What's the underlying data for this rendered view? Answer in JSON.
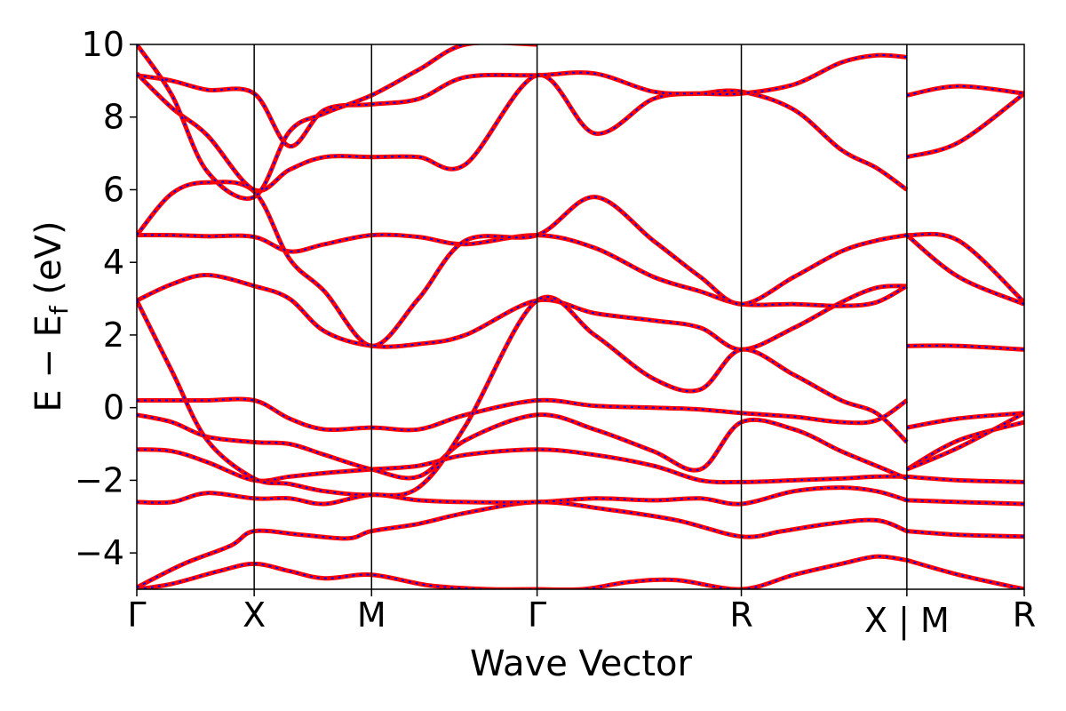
{
  "chart_data": {
    "type": "line",
    "title": "",
    "xlabel": "Wave Vector",
    "ylabel": "E − E",
    "ylabel_sub": "f",
    "ylabel_unit": " (eV)",
    "ylim": [
      -5,
      10
    ],
    "yticks": [
      -4,
      -2,
      0,
      2,
      4,
      6,
      8,
      10
    ],
    "ytick_labels": [
      "−4",
      "−2",
      "0",
      "2",
      "4",
      "6",
      "8",
      "10"
    ],
    "kpath": {
      "positions": [
        0,
        1,
        2,
        3.41,
        5.15,
        6.56,
        7.56
      ],
      "labels": [
        "Γ",
        "X",
        "M",
        "Γ",
        "R",
        "X",
        "R"
      ],
      "break_label": "X | M",
      "break_position": 6.56,
      "xlim": [
        0,
        7.56
      ]
    },
    "colors": {
      "line_primary": "#ff0000",
      "line_overlay": "#0000ff",
      "frame": "#000000"
    },
    "bands": [
      {
        "name": "b1",
        "x": [
          0,
          0.3,
          0.7,
          1,
          1.3,
          1.6,
          2,
          2.5,
          3,
          3.41,
          3.8,
          4.2,
          4.6,
          5.15,
          5.6,
          6.0,
          6.3,
          6.56,
          6.56,
          7.0,
          7.56
        ],
        "y": [
          -5,
          -4.85,
          -4.5,
          -4.3,
          -4.5,
          -4.7,
          -4.6,
          -4.9,
          -5,
          -5,
          -5,
          -4.8,
          -4.75,
          -5,
          -4.6,
          -4.3,
          -4.1,
          -4.2,
          -4.2,
          -4.6,
          -5
        ]
      },
      {
        "name": "b2",
        "x": [
          0,
          0.4,
          0.8,
          1,
          1.4,
          1.8,
          2,
          2.4,
          2.8,
          3.41,
          4.0,
          4.6,
          5.15,
          5.5,
          5.9,
          6.3,
          6.56,
          6.56,
          7.0,
          7.56
        ],
        "y": [
          -4.95,
          -4.3,
          -3.8,
          -3.4,
          -3.5,
          -3.6,
          -3.4,
          -3.2,
          -2.9,
          -2.6,
          -2.8,
          -3.1,
          -3.55,
          -3.4,
          -3.2,
          -3.1,
          -3.4,
          -3.4,
          -3.5,
          -3.55
        ]
      },
      {
        "name": "b3",
        "x": [
          0,
          0.3,
          0.6,
          1,
          1.3,
          1.6,
          2,
          2.4,
          2.8,
          3.41,
          3.9,
          4.4,
          4.8,
          5.15,
          5.6,
          6.0,
          6.3,
          6.56,
          6.56,
          7.0,
          7.56
        ],
        "y": [
          -2.6,
          -2.6,
          -2.35,
          -2.5,
          -2.5,
          -2.65,
          -2.4,
          -2.55,
          -2.6,
          -2.6,
          -2.5,
          -2.55,
          -2.5,
          -2.65,
          -2.3,
          -2.2,
          -2.3,
          -2.55,
          -2.55,
          -2.6,
          -2.65
        ]
      },
      {
        "name": "b4",
        "x": [
          0,
          0.3,
          0.6,
          1,
          1.3,
          1.6,
          2,
          2.4,
          2.8,
          3.41,
          3.9,
          4.4,
          4.8,
          5.15,
          5.6,
          6.0,
          6.3,
          6.56,
          6.56,
          7.0,
          7.56
        ],
        "y": [
          -1.15,
          -1.2,
          -1.5,
          -2.0,
          -1.9,
          -1.8,
          -1.7,
          -1.6,
          -1.3,
          -1.15,
          -1.3,
          -1.6,
          -2.0,
          -2.05,
          -2.0,
          -1.95,
          -1.9,
          -1.9,
          -1.9,
          -2.0,
          -2.05
        ]
      },
      {
        "name": "b5",
        "x": [
          0,
          0.3,
          0.6,
          1,
          1.3,
          1.6,
          2,
          2.4,
          2.8,
          3.41,
          3.9,
          4.4,
          4.8,
          5.15,
          5.6,
          6.0,
          6.3,
          6.56,
          6.56,
          7.0,
          7.56
        ],
        "y": [
          -0.2,
          -0.4,
          -0.8,
          -0.95,
          -1.0,
          -1.3,
          -1.7,
          -1.9,
          -0.9,
          -0.2,
          -0.6,
          -1.2,
          -1.7,
          -0.4,
          -0.6,
          -1.2,
          -1.6,
          -1.95,
          -1.7,
          -0.9,
          -0.4
        ]
      },
      {
        "name": "b6",
        "x": [
          0,
          0.3,
          0.6,
          1,
          1.3,
          1.6,
          2,
          2.4,
          2.8,
          3.41,
          3.9,
          4.4,
          4.8,
          5.15,
          5.6,
          6.0,
          6.3,
          6.56,
          6.56,
          7.0,
          7.56
        ],
        "y": [
          0.2,
          0.2,
          0.2,
          0.2,
          -0.3,
          -0.6,
          -0.55,
          -0.6,
          -0.2,
          0.2,
          0.05,
          0.0,
          -0.05,
          -0.15,
          -0.25,
          -0.4,
          -0.35,
          0.2,
          -0.55,
          -0.3,
          -0.15
        ]
      },
      {
        "name": "b7",
        "x": [
          0,
          0.3,
          0.6,
          1,
          1.3,
          1.6,
          2,
          2.4,
          2.8,
          3.41,
          3.9,
          4.4,
          4.8,
          5.15,
          5.6,
          6.0,
          6.3,
          6.56,
          6.56,
          7.0,
          7.56
        ],
        "y": [
          2.95,
          3.4,
          3.65,
          3.35,
          3.0,
          2.1,
          1.7,
          1.75,
          2.0,
          2.95,
          2.6,
          2.4,
          2.2,
          1.6,
          2.2,
          2.9,
          3.3,
          3.35,
          1.7,
          1.7,
          1.6
        ]
      },
      {
        "name": "b8",
        "x": [
          0,
          0.3,
          0.6,
          1,
          1.3,
          1.6,
          2,
          2.4,
          2.8,
          3.41,
          3.9,
          4.4,
          4.8,
          5.15,
          5.6,
          6.0,
          6.3,
          6.56,
          6.56,
          7.0,
          7.56
        ],
        "y": [
          2.95,
          1.0,
          -0.9,
          -1.95,
          -2.1,
          -2.3,
          -2.4,
          -2.2,
          -0.5,
          2.95,
          2.0,
          0.8,
          0.5,
          1.6,
          0.9,
          0.2,
          -0.15,
          -0.95,
          -1.7,
          -1.1,
          -0.15
        ]
      },
      {
        "name": "b9",
        "x": [
          0,
          0.3,
          0.6,
          1,
          1.3,
          1.6,
          2,
          2.4,
          2.8,
          3.41,
          3.9,
          4.4,
          4.8,
          5.15,
          5.6,
          6.0,
          6.3,
          6.56,
          6.56,
          7.0,
          7.56
        ],
        "y": [
          4.75,
          4.75,
          4.72,
          4.7,
          4.3,
          4.5,
          4.75,
          4.7,
          4.5,
          4.75,
          4.4,
          3.6,
          3.2,
          2.85,
          2.85,
          2.8,
          2.9,
          3.35,
          4.75,
          4.6,
          2.9
        ]
      },
      {
        "name": "b10",
        "x": [
          0,
          0.3,
          0.6,
          1,
          1.3,
          1.6,
          2,
          2.4,
          2.8,
          3.41,
          3.9,
          4.4,
          4.8,
          5.15,
          5.6,
          6.0,
          6.3,
          6.56,
          6.56,
          7.0,
          7.56
        ],
        "y": [
          4.75,
          5.9,
          6.2,
          5.95,
          4.1,
          3.2,
          1.7,
          3.0,
          4.6,
          4.75,
          5.8,
          4.6,
          3.6,
          2.85,
          3.6,
          4.3,
          4.6,
          4.75,
          4.75,
          3.6,
          2.85
        ]
      },
      {
        "name": "b11",
        "x": [
          0,
          0.3,
          0.6,
          1,
          1.3,
          1.6,
          2,
          2.4,
          2.8,
          3.41,
          3.9,
          4.4,
          4.8,
          5.15,
          5.6,
          6.0,
          6.3,
          6.56,
          6.56,
          7.0,
          7.56
        ],
        "y": [
          9.2,
          8.25,
          7.5,
          6.0,
          6.55,
          6.9,
          6.9,
          6.9,
          6.7,
          9.15,
          7.55,
          8.5,
          8.65,
          8.7,
          8.2,
          7.1,
          6.6,
          6.0,
          6.9,
          7.3,
          8.65
        ]
      },
      {
        "name": "b12",
        "x": [
          0,
          0.3,
          0.6,
          1,
          1.3,
          1.6,
          2,
          2.4,
          2.8,
          3.41,
          3.9,
          4.4,
          4.8,
          5.15,
          5.6,
          6.0,
          6.3,
          6.56,
          6.56,
          7.0,
          7.56
        ],
        "y": [
          9.15,
          9.0,
          8.75,
          8.65,
          7.2,
          8.2,
          8.35,
          8.5,
          9.1,
          9.15,
          9.2,
          8.7,
          8.65,
          8.65,
          8.9,
          9.5,
          9.7,
          9.65,
          8.6,
          8.85,
          8.65
        ]
      },
      {
        "name": "b13",
        "x": [
          0,
          0.3,
          0.6,
          1,
          1.3,
          1.6,
          2,
          2.4,
          2.8,
          3.41
        ],
        "y": [
          10,
          8.6,
          6.5,
          5.8,
          7.6,
          8.1,
          8.6,
          9.3,
          10,
          10
        ]
      }
    ]
  }
}
